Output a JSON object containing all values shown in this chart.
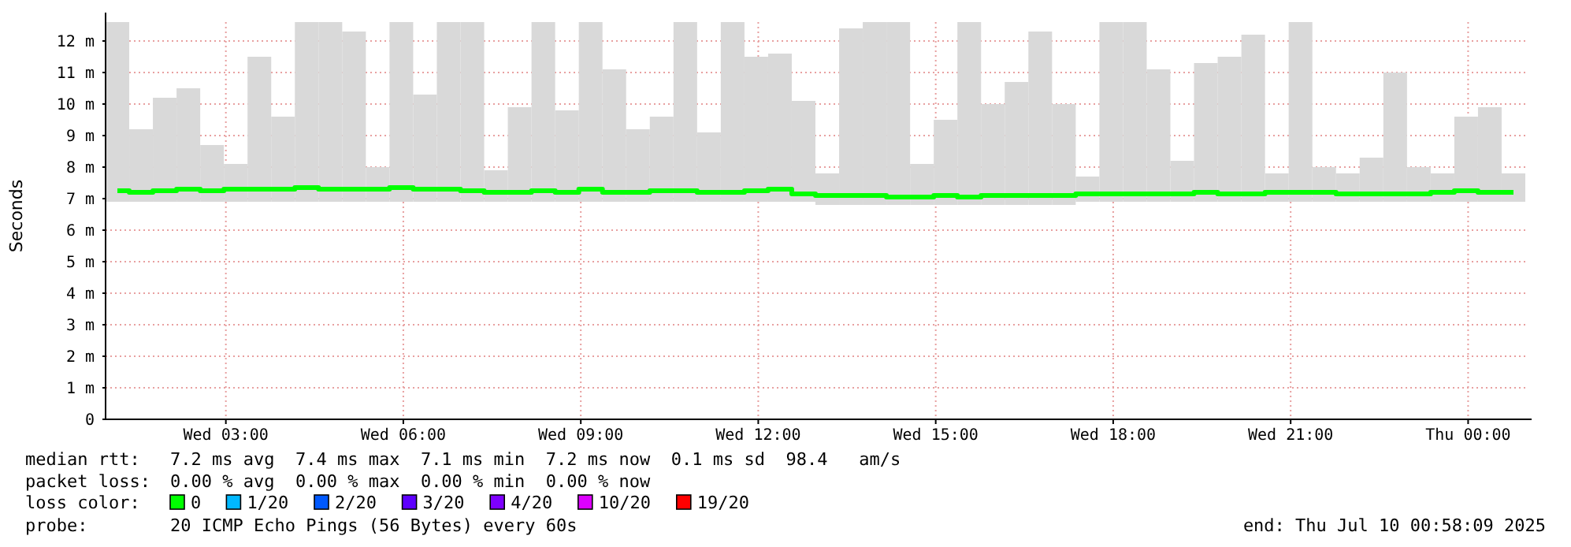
{
  "chart_data": {
    "type": "step",
    "ylabel": "Seconds",
    "x": [
      "2025-07-09T01:10",
      "2025-07-09T01:34",
      "2025-07-09T01:58",
      "2025-07-09T02:22",
      "2025-07-09T02:46",
      "2025-07-09T03:10",
      "2025-07-09T03:34",
      "2025-07-09T03:58",
      "2025-07-09T04:22",
      "2025-07-09T04:46",
      "2025-07-09T05:10",
      "2025-07-09T05:34",
      "2025-07-09T05:58",
      "2025-07-09T06:22",
      "2025-07-09T06:46",
      "2025-07-09T07:10",
      "2025-07-09T07:34",
      "2025-07-09T07:58",
      "2025-07-09T08:22",
      "2025-07-09T08:46",
      "2025-07-09T09:10",
      "2025-07-09T09:34",
      "2025-07-09T09:58",
      "2025-07-09T10:22",
      "2025-07-09T10:46",
      "2025-07-09T11:10",
      "2025-07-09T11:34",
      "2025-07-09T11:58",
      "2025-07-09T12:22",
      "2025-07-09T12:46",
      "2025-07-09T13:10",
      "2025-07-09T13:34",
      "2025-07-09T13:58",
      "2025-07-09T14:22",
      "2025-07-09T14:46",
      "2025-07-09T15:10",
      "2025-07-09T15:34",
      "2025-07-09T15:58",
      "2025-07-09T16:22",
      "2025-07-09T16:46",
      "2025-07-09T17:10",
      "2025-07-09T17:34",
      "2025-07-09T17:58",
      "2025-07-09T18:22",
      "2025-07-09T18:46",
      "2025-07-09T19:10",
      "2025-07-09T19:34",
      "2025-07-09T19:58",
      "2025-07-09T20:22",
      "2025-07-09T20:46",
      "2025-07-09T21:10",
      "2025-07-09T21:34",
      "2025-07-09T21:58",
      "2025-07-09T22:22",
      "2025-07-09T22:46",
      "2025-07-09T23:10",
      "2025-07-09T23:34",
      "2025-07-09T23:58",
      "2025-07-10T00:22",
      "2025-07-10T00:46"
    ],
    "series": [
      {
        "type": "bar",
        "color": "#d9d9d9",
        "base": [
          6.9,
          6.9,
          6.9,
          6.9,
          6.9,
          6.9,
          6.9,
          6.9,
          6.9,
          6.9,
          6.9,
          6.9,
          6.9,
          6.9,
          6.9,
          6.9,
          6.9,
          6.9,
          6.9,
          6.9,
          6.9,
          6.9,
          6.9,
          6.9,
          6.9,
          6.9,
          6.9,
          6.9,
          6.9,
          6.9,
          6.8,
          6.8,
          6.8,
          6.8,
          6.8,
          6.8,
          6.8,
          6.8,
          6.8,
          6.8,
          6.8,
          6.9,
          6.9,
          6.9,
          6.9,
          6.9,
          6.9,
          6.9,
          6.9,
          6.9,
          6.9,
          6.9,
          6.9,
          6.9,
          6.9,
          6.9,
          6.9,
          6.9,
          6.9,
          6.9
        ],
        "values": [
          5.7,
          2.3,
          3.3,
          3.6,
          1.8,
          1.2,
          4.6,
          2.7,
          5.7,
          5.7,
          5.4,
          1.1,
          5.7,
          3.4,
          5.7,
          5.7,
          1.0,
          3.0,
          5.7,
          2.9,
          5.7,
          4.2,
          2.3,
          2.7,
          5.7,
          2.2,
          5.7,
          4.6,
          4.7,
          3.2,
          1.0,
          5.6,
          5.8,
          5.8,
          1.3,
          2.7,
          5.8,
          3.2,
          3.9,
          5.5,
          3.2,
          0.8,
          5.7,
          5.7,
          4.2,
          1.3,
          4.4,
          4.6,
          5.3,
          0.9,
          5.7,
          1.1,
          0.9,
          1.4,
          4.1,
          1.1,
          0.9,
          2.7,
          3.0,
          0.9
        ]
      },
      {
        "name": "0",
        "color": "#00ff00",
        "values": [
          7.25,
          7.2,
          7.25,
          7.3,
          7.25,
          7.3,
          7.3,
          7.3,
          7.35,
          7.3,
          7.3,
          7.3,
          7.35,
          7.3,
          7.3,
          7.25,
          7.2,
          7.2,
          7.25,
          7.2,
          7.3,
          7.2,
          7.2,
          7.25,
          7.25,
          7.2,
          7.2,
          7.25,
          7.3,
          7.15,
          7.1,
          7.1,
          7.1,
          7.05,
          7.05,
          7.1,
          7.05,
          7.1,
          7.1,
          7.1,
          7.1,
          7.15,
          7.15,
          7.15,
          7.15,
          7.15,
          7.2,
          7.15,
          7.15,
          7.2,
          7.2,
          7.2,
          7.15,
          7.15,
          7.15,
          7.15,
          7.2,
          7.25,
          7.2,
          7.2
        ]
      },
      {
        "name": "1/20",
        "color": "#00b8ff",
        "values": [
          null,
          null,
          null,
          null,
          null,
          null,
          null,
          null,
          null,
          null,
          null,
          null,
          null,
          null,
          null,
          null,
          null,
          null,
          null,
          null,
          null,
          null,
          null,
          null,
          null,
          null,
          null,
          null,
          null,
          null,
          null,
          null,
          null,
          null,
          null,
          null,
          null,
          null,
          null,
          null,
          null,
          null,
          null,
          null,
          null,
          null,
          null,
          null,
          null,
          null,
          null,
          null,
          null,
          null,
          null,
          null,
          null,
          null,
          null,
          null
        ]
      },
      {
        "name": "2/20",
        "color": "#0059ff",
        "values": [
          null,
          null,
          null,
          null,
          null,
          null,
          null,
          null,
          null,
          null,
          null,
          null,
          null,
          null,
          null,
          null,
          null,
          null,
          null,
          null,
          null,
          null,
          null,
          null,
          null,
          null,
          null,
          null,
          null,
          null,
          null,
          null,
          null,
          null,
          null,
          null,
          null,
          null,
          null,
          null,
          null,
          null,
          null,
          null,
          null,
          null,
          null,
          null,
          null,
          null,
          null,
          null,
          null,
          null,
          null,
          null,
          null,
          null,
          null,
          null
        ]
      },
      {
        "name": "3/20",
        "color": "#5e00ff",
        "values": [
          null,
          null,
          null,
          null,
          null,
          null,
          null,
          null,
          null,
          null,
          null,
          null,
          null,
          null,
          null,
          null,
          null,
          null,
          null,
          null,
          null,
          null,
          null,
          null,
          null,
          null,
          null,
          null,
          null,
          null,
          null,
          null,
          null,
          null,
          null,
          null,
          null,
          null,
          null,
          null,
          null,
          null,
          null,
          null,
          null,
          null,
          null,
          null,
          null,
          null,
          null,
          null,
          null,
          null,
          null,
          null,
          null,
          null,
          null,
          null
        ]
      },
      {
        "name": "4/20",
        "color": "#7e00ff",
        "values": [
          null,
          null,
          null,
          null,
          null,
          null,
          null,
          null,
          null,
          null,
          null,
          null,
          null,
          null,
          null,
          null,
          null,
          null,
          null,
          null,
          null,
          null,
          null,
          null,
          null,
          null,
          null,
          null,
          null,
          null,
          null,
          null,
          null,
          null,
          null,
          null,
          null,
          null,
          null,
          null,
          null,
          null,
          null,
          null,
          null,
          null,
          null,
          null,
          null,
          null,
          null,
          null,
          null,
          null,
          null,
          null,
          null,
          null,
          null,
          null
        ]
      },
      {
        "name": "10/20",
        "color": "#dd00ff",
        "values": [
          null,
          null,
          null,
          null,
          null,
          null,
          null,
          null,
          null,
          null,
          null,
          null,
          null,
          null,
          null,
          null,
          null,
          null,
          null,
          null,
          null,
          null,
          null,
          null,
          null,
          null,
          null,
          null,
          null,
          null,
          null,
          null,
          null,
          null,
          null,
          null,
          null,
          null,
          null,
          null,
          null,
          null,
          null,
          null,
          null,
          null,
          null,
          null,
          null,
          null,
          null,
          null,
          null,
          null,
          null,
          null,
          null,
          null,
          null,
          null
        ]
      },
      {
        "name": "19/20",
        "color": "#ff0000",
        "values": [
          null,
          null,
          null,
          null,
          null,
          null,
          null,
          null,
          null,
          null,
          null,
          null,
          null,
          null,
          null,
          null,
          null,
          null,
          null,
          null,
          null,
          null,
          null,
          null,
          null,
          null,
          null,
          null,
          null,
          null,
          null,
          null,
          null,
          null,
          null,
          null,
          null,
          null,
          null,
          null,
          null,
          null,
          null,
          null,
          null,
          null,
          null,
          null,
          null,
          null,
          null,
          null,
          null,
          null,
          null,
          null,
          null,
          null,
          null,
          null
        ]
      }
    ],
    "xlim": [
      "2025-07-09T00:58",
      "2025-07-10T00:58"
    ],
    "xticks": [
      {
        "value": "2025-07-09T03:00",
        "label": "Wed 03:00"
      },
      {
        "value": "2025-07-09T06:00",
        "label": "Wed 06:00"
      },
      {
        "value": "2025-07-09T09:00",
        "label": "Wed 09:00"
      },
      {
        "value": "2025-07-09T12:00",
        "label": "Wed 12:00"
      },
      {
        "value": "2025-07-09T15:00",
        "label": "Wed 15:00"
      },
      {
        "value": "2025-07-09T18:00",
        "label": "Wed 18:00"
      },
      {
        "value": "2025-07-09T21:00",
        "label": "Wed 21:00"
      },
      {
        "value": "2025-07-10T00:00",
        "label": "Thu 00:00"
      }
    ],
    "ylim": [
      0,
      12.6
    ],
    "yticks": [
      0,
      {
        "value": 1,
        "label": "1 m"
      },
      {
        "value": 2,
        "label": "2 m"
      },
      {
        "value": 3,
        "label": "3 m"
      },
      {
        "value": 4,
        "label": "4 m"
      },
      {
        "value": 5,
        "label": "5 m"
      },
      {
        "value": 6,
        "label": "6 m"
      },
      {
        "value": 7,
        "label": "7 m"
      },
      {
        "value": 8,
        "label": "8 m"
      },
      {
        "value": 9,
        "label": "9 m"
      },
      {
        "value": 10,
        "label": "10 m"
      },
      {
        "value": 11,
        "label": "11 m"
      },
      {
        "value": 12,
        "label": "12 m"
      }
    ],
    "grid": true,
    "legend": "bottom",
    "legend_title": "loss color:",
    "annotations": [
      "median rtt:  7.2 ms avg  7.4 ms max  7.1 ms min  7.2 ms now  0.1 ms sd  98.4   am/s",
      "packet loss: 0.00 % avg  0.00 % max  0.00 % min  0.00 % now",
      "probe:       20 ICMP Echo Pings (56 Bytes) every 60s",
      "end: Thu Jul 10 00:58:09 2025"
    ]
  }
}
